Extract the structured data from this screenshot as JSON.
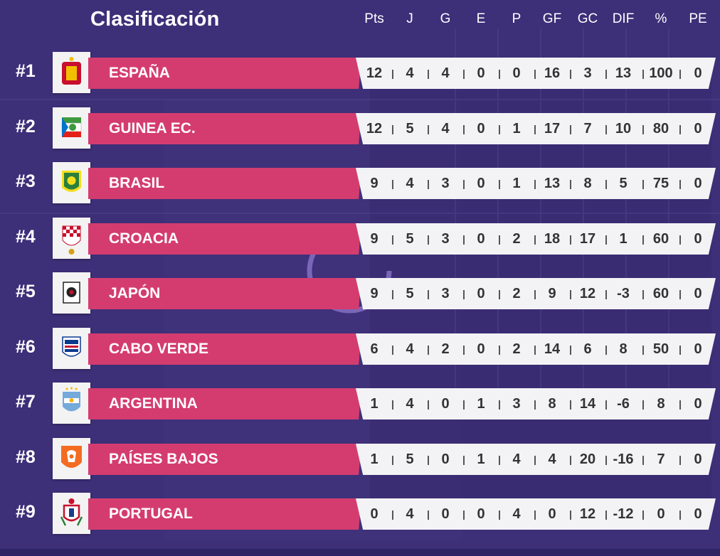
{
  "header": {
    "title": "Clasificación",
    "columns": [
      "Pts",
      "J",
      "G",
      "E",
      "P",
      "GF",
      "GC",
      "DIF",
      "%",
      "PE"
    ]
  },
  "rows": [
    {
      "rank": "#1",
      "team": "ESPAÑA",
      "crest": "spain-crest-icon",
      "stats": [
        "12",
        "4",
        "4",
        "0",
        "0",
        "16",
        "3",
        "13",
        "100",
        "0"
      ]
    },
    {
      "rank": "#2",
      "team": "GUINEA EC.",
      "crest": "equatorial-guinea-crest-icon",
      "stats": [
        "12",
        "5",
        "4",
        "0",
        "1",
        "17",
        "7",
        "10",
        "80",
        "0"
      ]
    },
    {
      "rank": "#3",
      "team": "BRASIL",
      "crest": "brazil-crest-icon",
      "stats": [
        "9",
        "4",
        "3",
        "0",
        "1",
        "13",
        "8",
        "5",
        "75",
        "0"
      ]
    },
    {
      "rank": "#4",
      "team": "CROACIA",
      "crest": "croatia-crest-icon",
      "stats": [
        "9",
        "5",
        "3",
        "0",
        "2",
        "18",
        "17",
        "1",
        "60",
        "0"
      ]
    },
    {
      "rank": "#5",
      "team": "JAPÓN",
      "crest": "japan-crest-icon",
      "stats": [
        "9",
        "5",
        "3",
        "0",
        "2",
        "9",
        "12",
        "-3",
        "60",
        "0"
      ]
    },
    {
      "rank": "#6",
      "team": "CABO VERDE",
      "crest": "cape-verde-crest-icon",
      "stats": [
        "6",
        "4",
        "2",
        "0",
        "2",
        "14",
        "6",
        "8",
        "50",
        "0"
      ]
    },
    {
      "rank": "#7",
      "team": "ARGENTINA",
      "crest": "argentina-crest-icon",
      "stats": [
        "1",
        "4",
        "0",
        "1",
        "3",
        "8",
        "14",
        "-6",
        "8",
        "0"
      ]
    },
    {
      "rank": "#8",
      "team": "PAÍSES BAJOS",
      "crest": "netherlands-crest-icon",
      "stats": [
        "1",
        "5",
        "0",
        "1",
        "4",
        "4",
        "20",
        "-16",
        "7",
        "0"
      ]
    },
    {
      "rank": "#9",
      "team": "PORTUGAL",
      "crest": "portugal-crest-icon",
      "stats": [
        "0",
        "4",
        "0",
        "0",
        "4",
        "0",
        "12",
        "-12",
        "0",
        "0"
      ]
    }
  ],
  "colors": {
    "background": "#3b2c74",
    "team_bar": "#d43c6f",
    "stats_bar": "#f3f3f5",
    "text_light": "#ffffff",
    "text_dark": "#333333"
  }
}
